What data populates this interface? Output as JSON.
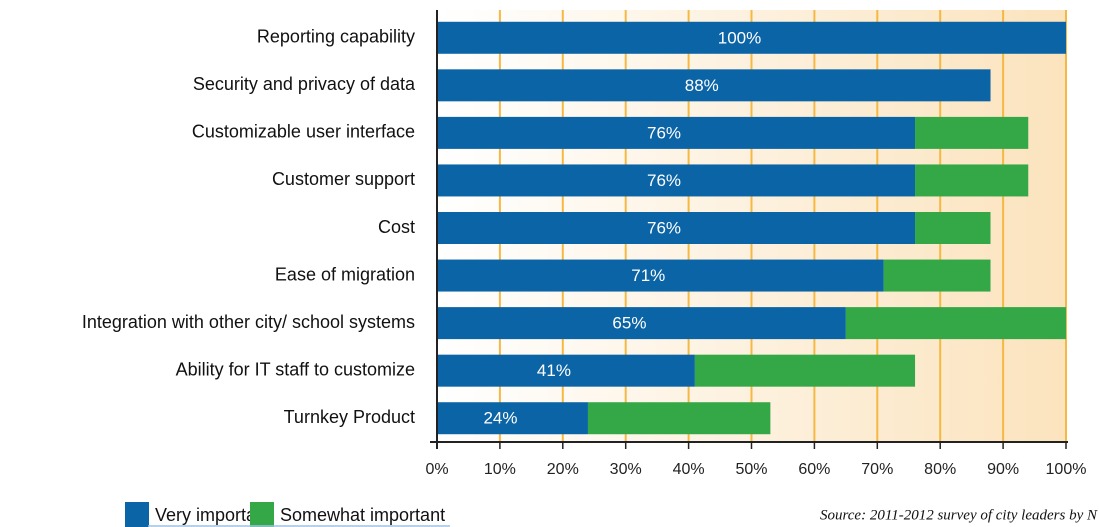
{
  "chart_data": {
    "type": "stacked_barh",
    "categories": [
      "Reporting capability",
      "Security and privacy of data",
      "Customizable user interface",
      "Customer support",
      "Cost",
      "Ease of migration",
      "Integration with other city/ school systems",
      "Ability for IT staff to customize",
      "Turnkey Product"
    ],
    "series": [
      {
        "name": "Very important",
        "color": "#0b64a5",
        "values": [
          100,
          88,
          76,
          76,
          76,
          71,
          65,
          41,
          24
        ],
        "value_labels": [
          "100%",
          "88%",
          "76%",
          "76%",
          "76%",
          "71%",
          "65%",
          "41%",
          "24%"
        ]
      },
      {
        "name": "Somewhat important",
        "color": "#34a847",
        "values": [
          0,
          0,
          18,
          18,
          12,
          17,
          35,
          35,
          29
        ]
      }
    ],
    "xlim": [
      0,
      100
    ],
    "xticks": [
      {
        "value": 0,
        "label": "0%"
      },
      {
        "value": 10,
        "label": "10%"
      },
      {
        "value": 20,
        "label": "20%"
      },
      {
        "value": 30,
        "label": "30%"
      },
      {
        "value": 40,
        "label": "40%"
      },
      {
        "value": 50,
        "label": "50%"
      },
      {
        "value": 60,
        "label": "60%"
      },
      {
        "value": 70,
        "label": "70%"
      },
      {
        "value": 80,
        "label": "80%"
      },
      {
        "value": 90,
        "label": "90%"
      },
      {
        "value": 100,
        "label": "100%"
      }
    ],
    "grid": true,
    "grid_color": "#f6b844",
    "source": "Source: 2011-2012 survey of city leaders by N"
  }
}
